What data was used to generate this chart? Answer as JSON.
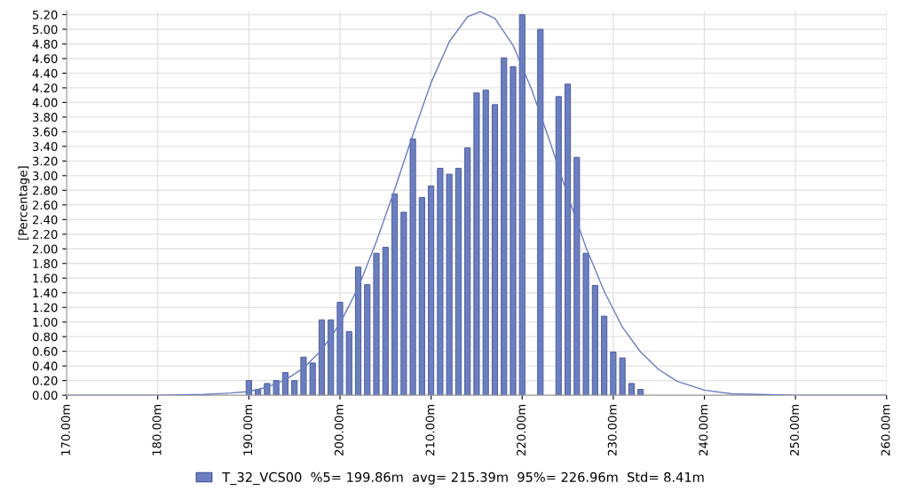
{
  "chart_data": {
    "type": "histogram",
    "ylabel": "[Percentage]",
    "xlim": [
      170,
      260
    ],
    "xticks": [
      {
        "value": 170,
        "label": "170.00m"
      },
      {
        "value": 180,
        "label": "180.00m"
      },
      {
        "value": 190,
        "label": "190.00m"
      },
      {
        "value": 200,
        "label": "200.00m"
      },
      {
        "value": 210,
        "label": "210.00m"
      },
      {
        "value": 220,
        "label": "220.00m"
      },
      {
        "value": 230,
        "label": "230.00m"
      },
      {
        "value": 240,
        "label": "240.00m"
      },
      {
        "value": 250,
        "label": "250.00m"
      },
      {
        "value": 260,
        "label": "260.00m"
      }
    ],
    "ylim": [
      0,
      5.25
    ],
    "yticks": [
      {
        "value": 0,
        "label": "0.00"
      },
      {
        "value": 0.2,
        "label": "0.20"
      },
      {
        "value": 0.4,
        "label": "0.40"
      },
      {
        "value": 0.6,
        "label": "0.60"
      },
      {
        "value": 0.8,
        "label": "0.80"
      },
      {
        "value": 1.0,
        "label": "1.00"
      },
      {
        "value": 1.2,
        "label": "1.20"
      },
      {
        "value": 1.4,
        "label": "1.40"
      },
      {
        "value": 1.6,
        "label": "1.60"
      },
      {
        "value": 1.8,
        "label": "1.80"
      },
      {
        "value": 2.0,
        "label": "2.00"
      },
      {
        "value": 2.2,
        "label": "2.20"
      },
      {
        "value": 2.4,
        "label": "2.40"
      },
      {
        "value": 2.6,
        "label": "2.60"
      },
      {
        "value": 2.8,
        "label": "2.80"
      },
      {
        "value": 3.0,
        "label": "3.00"
      },
      {
        "value": 3.2,
        "label": "3.20"
      },
      {
        "value": 3.4,
        "label": "3.40"
      },
      {
        "value": 3.6,
        "label": "3.60"
      },
      {
        "value": 3.8,
        "label": "3.80"
      },
      {
        "value": 4.0,
        "label": "4.00"
      },
      {
        "value": 4.2,
        "label": "4.20"
      },
      {
        "value": 4.4,
        "label": "4.40"
      },
      {
        "value": 4.6,
        "label": "4.60"
      },
      {
        "value": 4.8,
        "label": "4.80"
      },
      {
        "value": 5.0,
        "label": "5.00"
      },
      {
        "value": 5.2,
        "label": "5.20"
      }
    ],
    "grid": true,
    "legend": "bottom",
    "series": [
      {
        "type": "histogram",
        "name": "T_32_VCS00  %5= 199.86m  avg= 215.39m  95%= 226.96m  Std= 8.41m",
        "color": "#6b7fbf",
        "bins": [
          189.5,
          190.5,
          191.5,
          192.5,
          193.5,
          194.5,
          195.5,
          196.5,
          197.5,
          198.5,
          199.5,
          200.5,
          201.5,
          202.5,
          203.5,
          204.5,
          205.5,
          206.5,
          207.5,
          208.5,
          209.5,
          210.5,
          211.5,
          212.5,
          213.5,
          214.5,
          215.5,
          216.5,
          217.5,
          218.5,
          219.5,
          220.5,
          221.5,
          222.5,
          223.5,
          224.5,
          225.5,
          226.5,
          227.5,
          228.5,
          229.5,
          230.5,
          231.5,
          232.5,
          233.5
        ],
        "values": [
          0.2,
          0.08,
          0.16,
          0.2,
          0.31,
          0.2,
          0.52,
          0.44,
          1.03,
          1.03,
          1.27,
          0.87,
          1.75,
          1.51,
          1.94,
          2.02,
          2.75,
          2.5,
          3.5,
          2.7,
          2.86,
          3.1,
          3.02,
          3.1,
          3.38,
          4.13,
          4.17,
          3.97,
          4.61,
          4.49,
          5.2,
          null,
          5.0,
          null,
          4.08,
          4.25,
          3.25,
          1.94,
          1.5,
          1.08,
          0.59,
          0.51,
          0.16,
          0.08
        ]
      },
      {
        "type": "line",
        "color": "#6a7cc0",
        "x": [
          170,
          180,
          185,
          188,
          190,
          192,
          194,
          196,
          198,
          200,
          202,
          204,
          206,
          208,
          210,
          212,
          214,
          215.4,
          217,
          219,
          221,
          223,
          225,
          227,
          229,
          231,
          233,
          235,
          237,
          240,
          243,
          246,
          250,
          260
        ],
        "values": [
          0.0,
          0.0,
          0.01,
          0.03,
          0.05,
          0.11,
          0.21,
          0.37,
          0.62,
          0.98,
          1.47,
          2.1,
          2.81,
          3.56,
          4.27,
          4.83,
          5.17,
          5.24,
          5.15,
          4.78,
          4.19,
          3.48,
          2.73,
          2.02,
          1.42,
          0.93,
          0.59,
          0.35,
          0.19,
          0.07,
          0.02,
          0.01,
          0.0,
          0.0
        ]
      }
    ]
  }
}
